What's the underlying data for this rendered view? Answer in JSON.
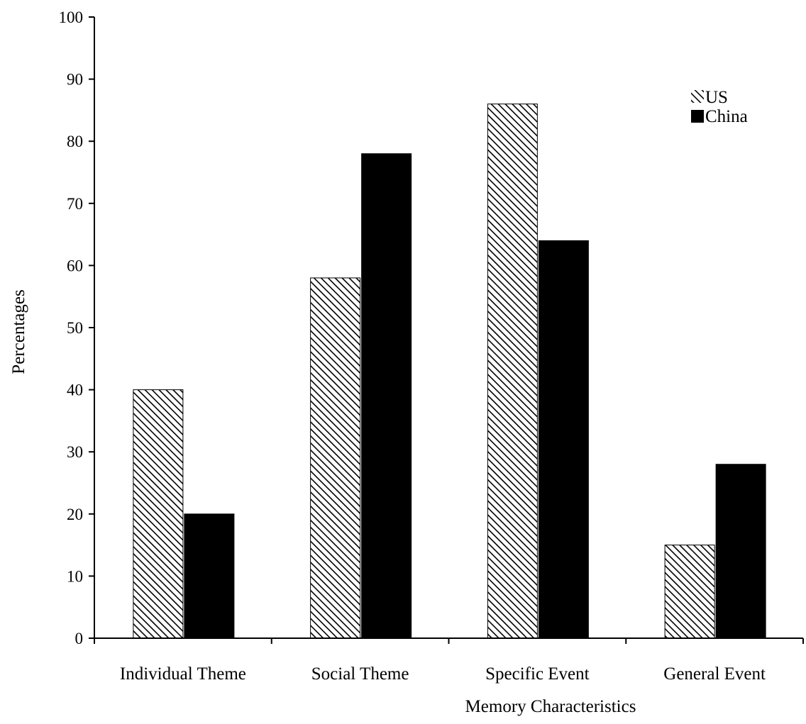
{
  "chart_data": {
    "type": "bar",
    "title": "",
    "xlabel": "Memory Characteristics",
    "ylabel": "Percentages",
    "ylim": [
      0,
      100
    ],
    "yticks": [
      0,
      10,
      20,
      30,
      40,
      50,
      60,
      70,
      80,
      90,
      100
    ],
    "categories": [
      "Individual Theme",
      "Social Theme",
      "Specific Event",
      "General Event"
    ],
    "series": [
      {
        "name": "US",
        "fill": "hatched",
        "color": "#000000",
        "values": [
          40,
          58,
          86,
          15
        ]
      },
      {
        "name": "China",
        "fill": "solid",
        "color": "#000000",
        "values": [
          20,
          78,
          64,
          28
        ]
      }
    ],
    "grid": false,
    "legend": "top-right"
  }
}
